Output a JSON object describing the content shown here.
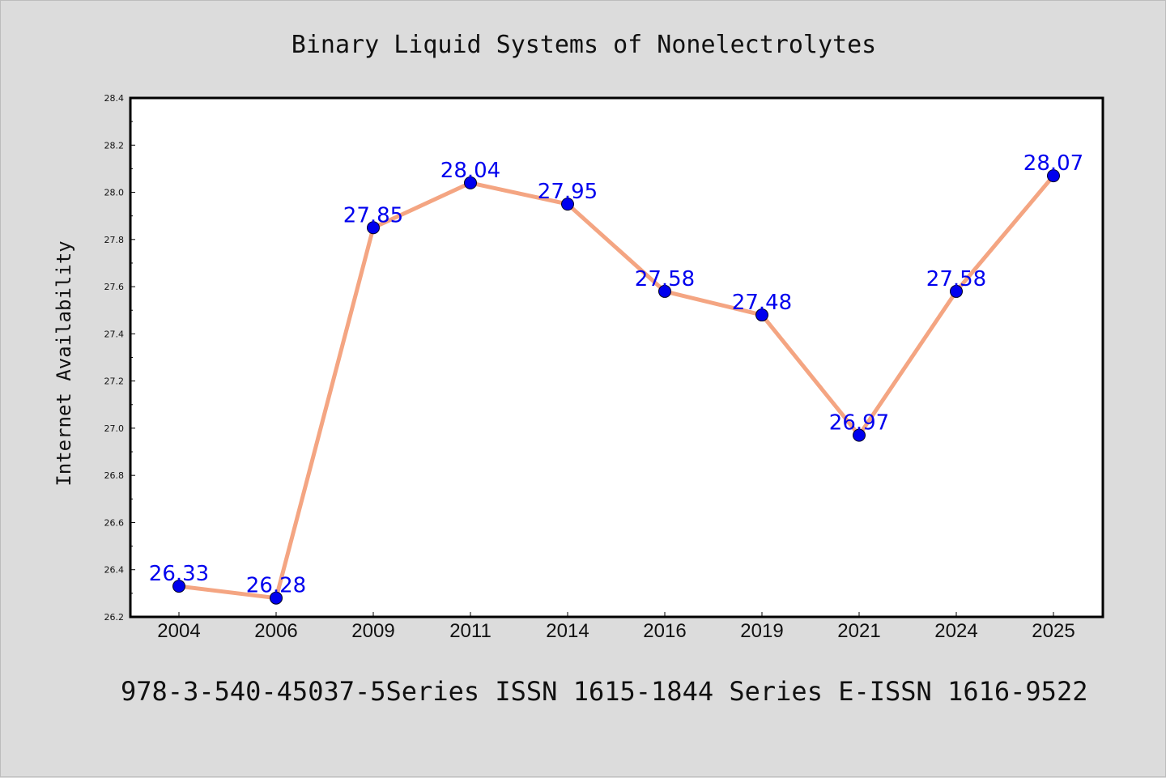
{
  "chart_data": {
    "type": "line",
    "title": "Binary Liquid Systems of Nonelectrolytes",
    "subtitle": "978-3-540-45037-5Series ISSN 1615-1844 Series E-ISSN 1616-9522",
    "xlabel": "",
    "ylabel": "Internet Availability",
    "categories": [
      "2004",
      "2006",
      "2009",
      "2011",
      "2014",
      "2016",
      "2019",
      "2021",
      "2024",
      "2025"
    ],
    "series": [
      {
        "values": [
          26.33,
          26.28,
          27.85,
          28.04,
          27.95,
          27.58,
          27.48,
          26.97,
          27.58,
          28.07
        ],
        "data_labels": [
          "26.33",
          "26.28",
          "27.85",
          "28.04",
          "27.95",
          "27.58",
          "27.48",
          "26.97",
          "27.58",
          "28.07"
        ]
      }
    ],
    "ylim": [
      26.2,
      28.4
    ],
    "yticks": [
      "26.2",
      "26.4",
      "26.6",
      "26.8",
      "27.0",
      "27.2",
      "27.4",
      "27.6",
      "27.8",
      "28.0",
      "28.2",
      "28.4"
    ],
    "grid": false,
    "colors": {
      "line": "#f4a582",
      "marker": "#0000ee",
      "label": "#0000ee",
      "background": "#dcdcdc",
      "plot_background": "#ffffff"
    }
  }
}
